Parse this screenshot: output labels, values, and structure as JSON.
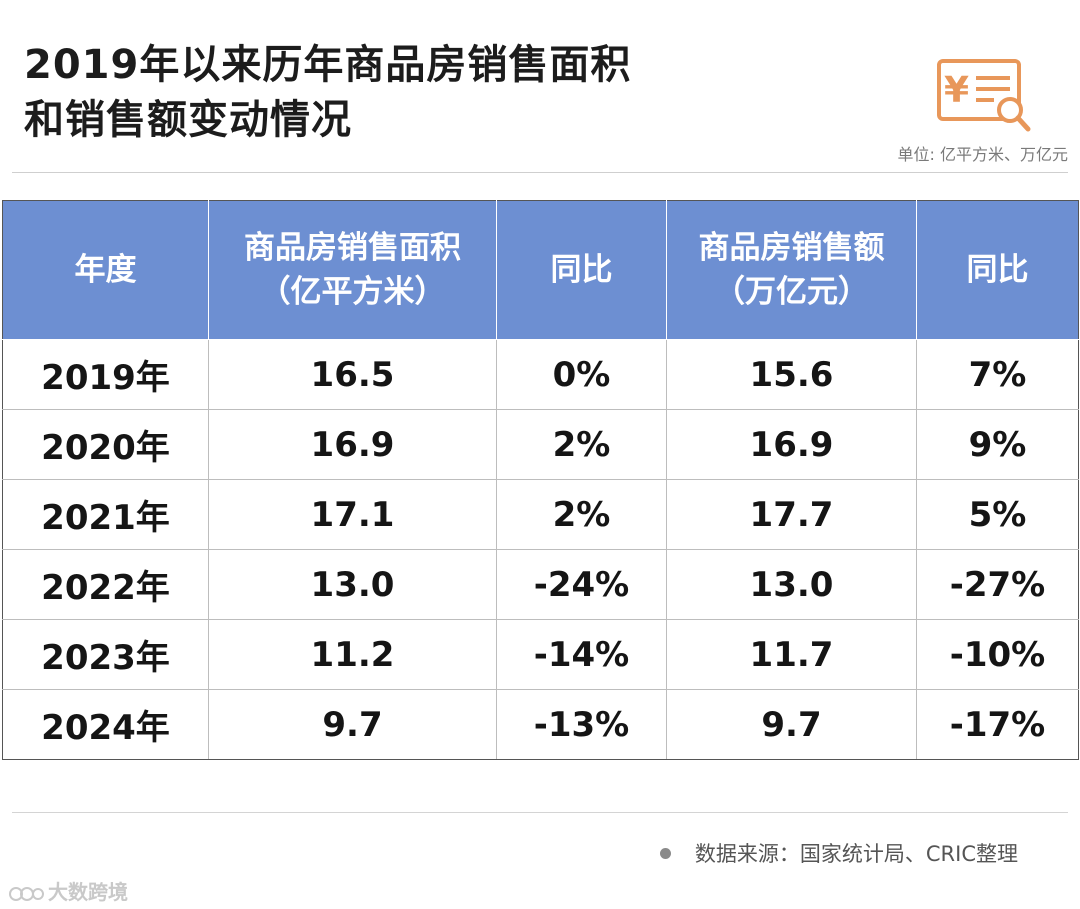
{
  "title_lines": [
    "2019年以来历年商品房销售面积",
    "和销售额变动情况"
  ],
  "unit": "单位: 亿平方米、万亿元",
  "icon": "yuan-report-search-icon",
  "accent_color": "#e8975a",
  "header_color": "#6d8fd2",
  "table": {
    "headers": [
      [
        "年度"
      ],
      [
        "商品房销售面积",
        "（亿平方米）"
      ],
      [
        "同比"
      ],
      [
        "商品房销售额",
        "（万亿元）"
      ],
      [
        "同比"
      ]
    ],
    "rows": [
      [
        "2019年",
        "16.5",
        "0%",
        "15.6",
        "7%"
      ],
      [
        "2020年",
        "16.9",
        "2%",
        "16.9",
        "9%"
      ],
      [
        "2021年",
        "17.1",
        "2%",
        "17.7",
        "5%"
      ],
      [
        "2022年",
        "13.0",
        "-24%",
        "13.0",
        "-27%"
      ],
      [
        "2023年",
        "11.2",
        "-14%",
        "11.7",
        "-10%"
      ],
      [
        "2024年",
        "9.7",
        "-13%",
        "9.7",
        "-17%"
      ]
    ]
  },
  "chart_data": {
    "type": "table",
    "columns": [
      "年度",
      "商品房销售面积（亿平方米）",
      "同比",
      "商品房销售额（万亿元）",
      "同比"
    ],
    "rows": [
      [
        "2019年",
        16.5,
        "0%",
        15.6,
        "7%"
      ],
      [
        "2020年",
        16.9,
        "2%",
        16.9,
        "9%"
      ],
      [
        "2021年",
        17.1,
        "2%",
        17.7,
        "5%"
      ],
      [
        "2022年",
        13.0,
        "-24%",
        13.0,
        "-27%"
      ],
      [
        "2023年",
        11.2,
        "-14%",
        11.7,
        "-10%"
      ],
      [
        "2024年",
        9.7,
        "-13%",
        9.7,
        "-17%"
      ]
    ]
  },
  "source": "数据来源：国家统计局、CRIC整理",
  "watermark": "大数跨境"
}
